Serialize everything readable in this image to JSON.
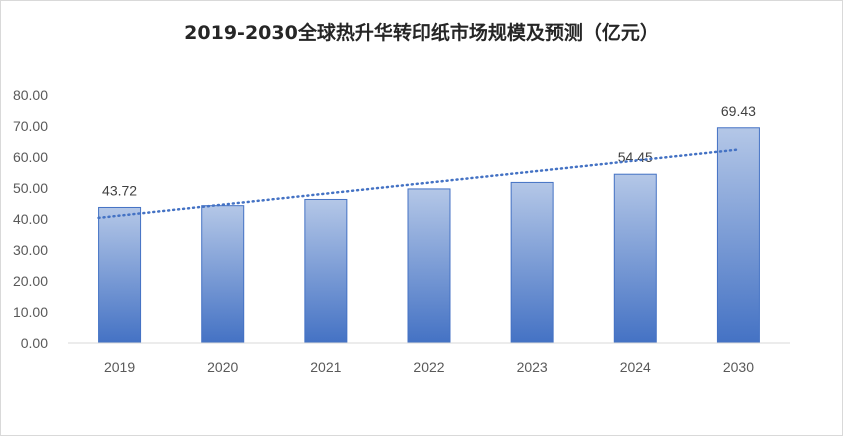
{
  "chart_data": {
    "type": "bar",
    "title": "2019-2030全球热升华转印纸市场规模及预测（亿元）",
    "categories": [
      "2019",
      "2020",
      "2021",
      "2022",
      "2023",
      "2024",
      "2030"
    ],
    "values": [
      43.72,
      44.3,
      46.3,
      49.7,
      51.8,
      54.45,
      69.43
    ],
    "data_labels": [
      "43.72",
      "",
      "",
      "",
      "",
      "54.45",
      "69.43"
    ],
    "y_ticks": [
      "0.00",
      "10.00",
      "20.00",
      "30.00",
      "40.00",
      "50.00",
      "60.00",
      "70.00",
      "80.00"
    ],
    "ylim": [
      0,
      80
    ],
    "trendline": "linear",
    "legend": "none",
    "colors": {
      "bar_top": "#b4c7e7",
      "bar_bottom": "#4472c4",
      "bar_border": "#4472c4",
      "trend": "#4472c4",
      "axis": "#d9d9d9"
    }
  }
}
